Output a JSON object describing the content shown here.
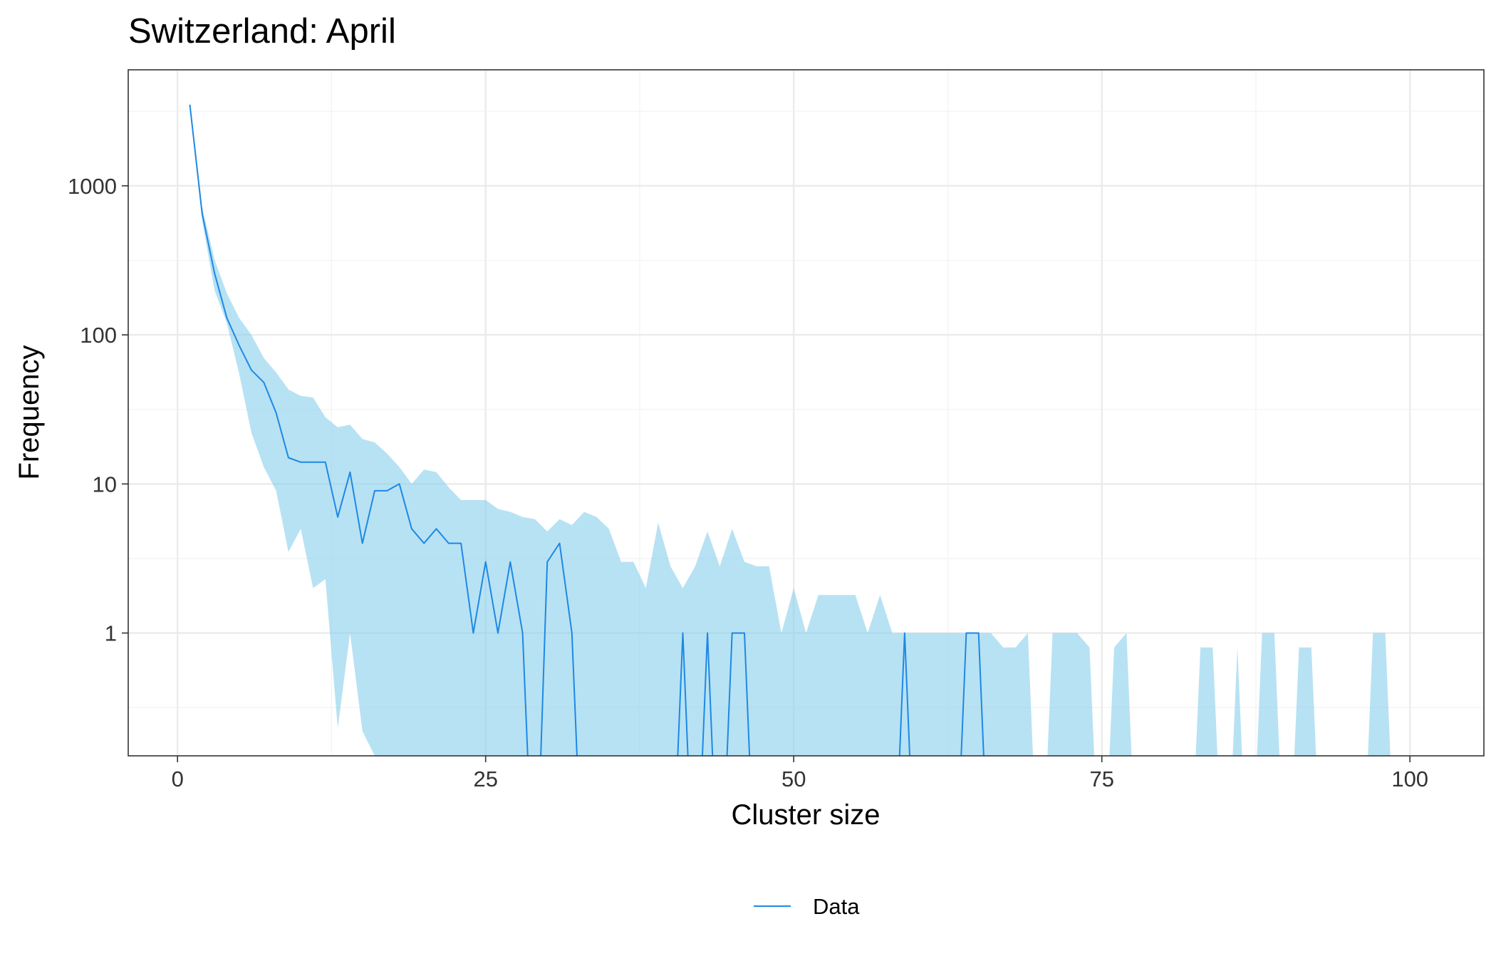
{
  "chart_data": {
    "type": "line",
    "title": "Switzerland: April",
    "xlabel": "Cluster size",
    "ylabel": "Frequency",
    "xlim": [
      -4,
      106
    ],
    "ylim": [
      0.15,
      6000
    ],
    "yscale": "log",
    "xticks": [
      0,
      25,
      50,
      75,
      100
    ],
    "xtick_labels": [
      "0",
      "25",
      "50",
      "75",
      "100"
    ],
    "yticks": [
      1,
      10,
      100,
      1000
    ],
    "ytick_labels": [
      "1",
      "10",
      "100",
      "1000"
    ],
    "grid": true,
    "legend": {
      "position": "bottom",
      "entries": [
        "Data"
      ]
    },
    "colors": {
      "line": "#1E88E5",
      "band": "#87CEEB"
    },
    "series": [
      {
        "name": "Data",
        "x": [
          1,
          2,
          3,
          4,
          5,
          6,
          7,
          8,
          9,
          10,
          11,
          12,
          13,
          14,
          15,
          16,
          17,
          18,
          19,
          20,
          21,
          22,
          23,
          24,
          25,
          26,
          27,
          28,
          29,
          30,
          31,
          32,
          33,
          34,
          35,
          36,
          37,
          38,
          39,
          40,
          41,
          42,
          43,
          44,
          45,
          46,
          47,
          48,
          49,
          50,
          51,
          52,
          53,
          54,
          55,
          56,
          57,
          58,
          59,
          60,
          61,
          62,
          63,
          64,
          65,
          66,
          67,
          68,
          69,
          70,
          71,
          72,
          73,
          74,
          75,
          76,
          77,
          78,
          79,
          80,
          81,
          82,
          83,
          84,
          85,
          86,
          87,
          88,
          89,
          90,
          91,
          92,
          93,
          94,
          95,
          96,
          97,
          98,
          99,
          100
        ],
        "values": [
          3500,
          650,
          260,
          130,
          85,
          58,
          48,
          30,
          15,
          14,
          14,
          14,
          6,
          12,
          4,
          9,
          9,
          10,
          5,
          4,
          5,
          4,
          4,
          1,
          3,
          1,
          3,
          1,
          0,
          3,
          4,
          1,
          0,
          0,
          0,
          0,
          0,
          0,
          0,
          0,
          1,
          0,
          1,
          0,
          1,
          1,
          0,
          0,
          0,
          0,
          0,
          0,
          0,
          0,
          0,
          0,
          0,
          0,
          1,
          0,
          0,
          0,
          0,
          1,
          1,
          0,
          0,
          0,
          0,
          0,
          0,
          0,
          0,
          0,
          0,
          0,
          0,
          0,
          0,
          0,
          0,
          0,
          0,
          0,
          0,
          0,
          0,
          0,
          0,
          0,
          0,
          0,
          0,
          0,
          0,
          0,
          0,
          0,
          0,
          0
        ]
      }
    ],
    "band": {
      "x": [
        1,
        2,
        3,
        4,
        5,
        6,
        7,
        8,
        9,
        10,
        11,
        12,
        13,
        14,
        15,
        16,
        17,
        18,
        19,
        20,
        21,
        22,
        23,
        24,
        25,
        26,
        27,
        28,
        29,
        30,
        31,
        32,
        33,
        34,
        35,
        36,
        37,
        38,
        39,
        40,
        41,
        42,
        43,
        44,
        45,
        46,
        47,
        48,
        49,
        50,
        51,
        52,
        53,
        54,
        55,
        56,
        57,
        58,
        59,
        60,
        61,
        62,
        63,
        64,
        65,
        66,
        67,
        68,
        69,
        70,
        71,
        72,
        73,
        74,
        75,
        76,
        77,
        78,
        79,
        80,
        81,
        82,
        83,
        84,
        85,
        86,
        87,
        88,
        89,
        90,
        91,
        92,
        93,
        94,
        95,
        96,
        97,
        98,
        99,
        100
      ],
      "lower": [
        3300,
        580,
        200,
        120,
        55,
        22,
        13,
        9,
        3.5,
        5,
        2,
        2.3,
        0.23,
        1,
        0.22,
        0.15,
        0,
        0,
        0,
        0,
        0,
        0,
        0,
        0,
        0,
        0,
        0,
        0,
        0,
        0,
        0,
        0,
        0,
        0,
        0,
        0,
        0,
        0,
        0,
        0,
        0,
        0,
        0,
        0,
        0,
        0,
        0,
        0,
        0,
        0,
        0,
        0,
        0,
        0,
        0,
        0,
        0,
        0,
        0,
        0,
        0,
        0,
        0,
        0,
        0,
        0,
        0,
        0,
        0,
        0,
        0,
        0,
        0,
        0,
        0,
        0,
        0,
        0,
        0,
        0,
        0,
        0,
        0,
        0,
        0,
        0,
        0,
        0,
        0,
        0,
        0,
        0,
        0,
        0,
        0,
        0,
        0,
        0,
        0,
        0
      ],
      "upper": [
        3700,
        720,
        320,
        190,
        130,
        100,
        70,
        56,
        43,
        39,
        38,
        28,
        24,
        25,
        20,
        19,
        16,
        13,
        10,
        12.5,
        12,
        9.5,
        7.8,
        7.8,
        7.8,
        6.8,
        6.5,
        6,
        5.8,
        4.8,
        5.8,
        5.3,
        6.5,
        6,
        5,
        3,
        3,
        2,
        5.5,
        2.8,
        2,
        2.8,
        4.8,
        2.8,
        5,
        3,
        2.8,
        2.8,
        1,
        2,
        1,
        1.8,
        1.8,
        1.8,
        1.8,
        1,
        1.8,
        1,
        1,
        1,
        1,
        1,
        1,
        1,
        1,
        1,
        0.8,
        0.8,
        1,
        0,
        1,
        1,
        1,
        0.8,
        0,
        0.8,
        1,
        0,
        0,
        0,
        0,
        0,
        0.8,
        0.8,
        0,
        0.8,
        0,
        1,
        1,
        0,
        0.8,
        0.8,
        0,
        0,
        0,
        0,
        1,
        1,
        0,
        0
      ]
    }
  }
}
